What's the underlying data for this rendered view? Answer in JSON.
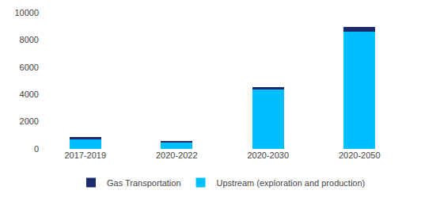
{
  "chart_data": {
    "type": "bar",
    "stacked": true,
    "categories": [
      "2017-2019",
      "2020-2022",
      "2020-2030",
      "2020-2050"
    ],
    "series": [
      {
        "name": "Upstream (exploration and production)",
        "color": "#00BFFF",
        "values": [
          700,
          450,
          4350,
          8600
        ]
      },
      {
        "name": "Gas Transportation",
        "color": "#1B2A6B",
        "values": [
          150,
          120,
          200,
          350
        ]
      }
    ],
    "ylim": [
      0,
      10000
    ],
    "yticks": [
      0,
      2000,
      4000,
      6000,
      8000,
      10000
    ],
    "grid": false,
    "legend": "bottom"
  }
}
